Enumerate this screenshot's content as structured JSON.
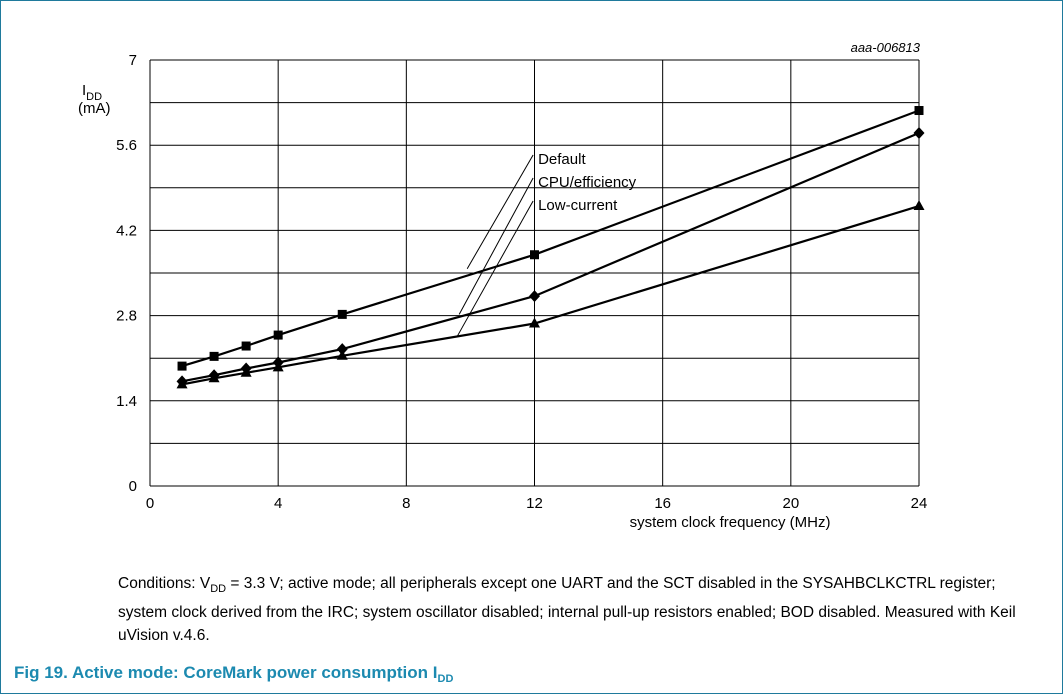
{
  "figure_code": "aaa-006813",
  "y_axis_label": {
    "main": "I",
    "sub": "DD",
    "unit": "(mA)"
  },
  "x_axis_label": "system clock frequency (MHz)",
  "conditions": {
    "prefix": "Conditions: V",
    "sub": "DD",
    "text": " = 3.3 V; active mode; all peripherals except one UART and the SCT disabled in the SYSAHBCLKCTRL register; system clock derived from the IRC; system oscillator disabled; internal pull-up resistors enabled; BOD disabled. Measured with Keil uVision v.4.6."
  },
  "caption": {
    "prefix": "Fig 19.   Active mode: CoreMark power consumption I",
    "sub": "DD"
  },
  "colors": {
    "frame": "#1f7a9c",
    "caption": "#1c8ab0",
    "series": "#000000"
  },
  "chart_data": {
    "type": "line",
    "xlim": [
      0,
      24
    ],
    "ylim": [
      0,
      7
    ],
    "xticks": [
      "0",
      "4",
      "8",
      "12",
      "16",
      "20",
      "24"
    ],
    "yticks": [
      "0",
      "1.4",
      "2.8",
      "4.2",
      "5.6",
      "7"
    ],
    "grid": true,
    "x_grid": [
      0,
      4,
      8,
      12,
      16,
      20,
      24
    ],
    "y_grid": [
      0,
      0.7,
      1.4,
      2.1,
      2.8,
      3.5,
      4.2,
      4.9,
      5.6,
      6.3,
      7
    ],
    "series": [
      {
        "name": "Default",
        "marker": "square",
        "x": [
          1,
          2,
          3,
          4,
          6,
          12,
          24
        ],
        "y": [
          1.97,
          2.13,
          2.3,
          2.48,
          2.82,
          3.8,
          6.17
        ]
      },
      {
        "name": "CPU/efficiency",
        "marker": "diamond",
        "x": [
          1,
          2,
          3,
          4,
          6,
          12,
          24
        ],
        "y": [
          1.72,
          1.82,
          1.93,
          2.03,
          2.25,
          3.12,
          5.8
        ]
      },
      {
        "name": "Low-current",
        "marker": "triangle",
        "x": [
          1,
          2,
          3,
          4,
          6,
          12,
          24
        ],
        "y": [
          1.67,
          1.77,
          1.86,
          1.95,
          2.14,
          2.67,
          4.6
        ]
      }
    ]
  }
}
